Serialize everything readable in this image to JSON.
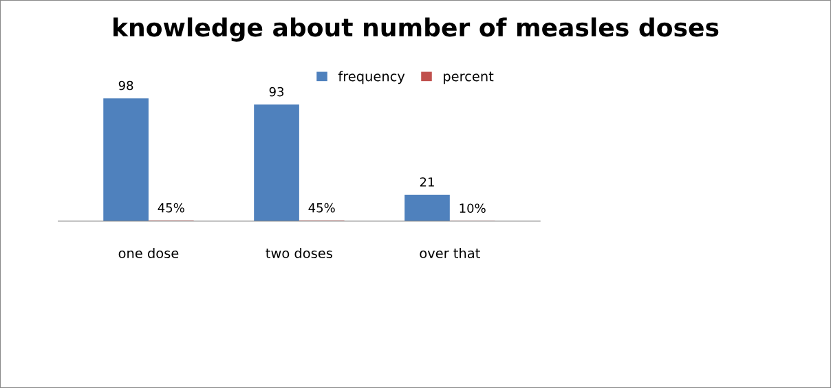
{
  "chart_data": {
    "type": "bar",
    "title": "knowledge about number of measles doses",
    "categories": [
      "one dose",
      "two doses",
      "over that"
    ],
    "series": [
      {
        "name": "frequency",
        "color": "#4f81bd",
        "values": [
          98,
          93,
          21
        ],
        "value_labels": [
          "98",
          "93",
          "21"
        ]
      },
      {
        "name": "percent",
        "color": "#c0504d",
        "values": [
          0.45,
          0.45,
          0.1
        ],
        "value_labels": [
          "45%",
          "45%",
          "10%"
        ]
      }
    ],
    "tick_labels": "x",
    "legend": "top",
    "grid": false
  }
}
